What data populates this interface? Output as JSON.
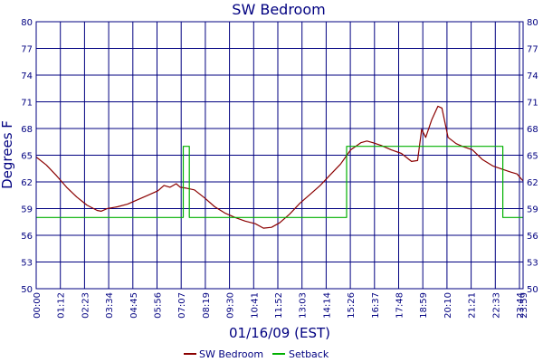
{
  "chart_data": {
    "type": "line",
    "title": "SW Bedroom",
    "xlabel": "01/16/09 (EST)",
    "ylabel": "Degrees F",
    "x_ticks": [
      "00:00",
      "01:12",
      "02:23",
      "03:34",
      "04:45",
      "05:56",
      "07:07",
      "08:19",
      "09:30",
      "10:41",
      "11:52",
      "13:03",
      "14:14",
      "15:26",
      "16:37",
      "17:48",
      "18:59",
      "20:10",
      "21:21",
      "22:33",
      "23:44",
      "23:59"
    ],
    "y_ticks": [
      80,
      77,
      74,
      71,
      68,
      65,
      62,
      59,
      56,
      53,
      50
    ],
    "ylim": [
      50,
      80
    ],
    "xlim_hours": [
      0,
      24
    ],
    "grid": true,
    "legend_position": "bottom-center",
    "series": [
      {
        "name": "SW Bedroom",
        "color": "#8b0000",
        "x_hours": [
          0,
          0.5,
          1,
          1.5,
          2,
          2.5,
          3,
          3.2,
          3.5,
          4,
          4.5,
          5,
          5.5,
          6,
          6.3,
          6.6,
          6.9,
          7.1,
          7.4,
          7.8,
          8.3,
          8.8,
          9.3,
          9.8,
          10.3,
          10.8,
          11.2,
          11.6,
          12,
          12.5,
          13,
          13.5,
          14,
          14.5,
          15,
          15.5,
          16,
          16.3,
          16.6,
          17,
          17.5,
          18,
          18.5,
          18.8,
          19,
          19.2,
          19.5,
          19.8,
          20,
          20.3,
          20.7,
          21,
          21.5,
          22,
          22.5,
          23,
          23.4,
          23.7,
          24
        ],
        "values": [
          64.8,
          63.9,
          62.7,
          61.4,
          60.3,
          59.4,
          58.8,
          58.7,
          59.0,
          59.2,
          59.5,
          60.0,
          60.5,
          61.0,
          61.6,
          61.4,
          61.8,
          61.4,
          61.3,
          61.1,
          60.2,
          59.2,
          58.5,
          58.0,
          57.6,
          57.3,
          56.8,
          56.9,
          57.4,
          58.4,
          59.6,
          60.6,
          61.6,
          62.8,
          64.0,
          65.6,
          66.4,
          66.6,
          66.4,
          66.1,
          65.6,
          65.2,
          64.3,
          64.4,
          67.9,
          67.0,
          69.0,
          70.5,
          70.3,
          67.0,
          66.3,
          66.0,
          65.6,
          64.5,
          63.8,
          63.4,
          63.1,
          62.9,
          62.1
        ]
      },
      {
        "name": "Setback",
        "color": "#00b000",
        "step": true,
        "x_hours": [
          0,
          7.25,
          7.25,
          7.55,
          7.55,
          15.3,
          15.3,
          23.0,
          23.0,
          24
        ],
        "values": [
          58,
          58,
          66,
          66,
          58,
          58,
          66,
          66,
          58,
          58
        ]
      }
    ]
  }
}
